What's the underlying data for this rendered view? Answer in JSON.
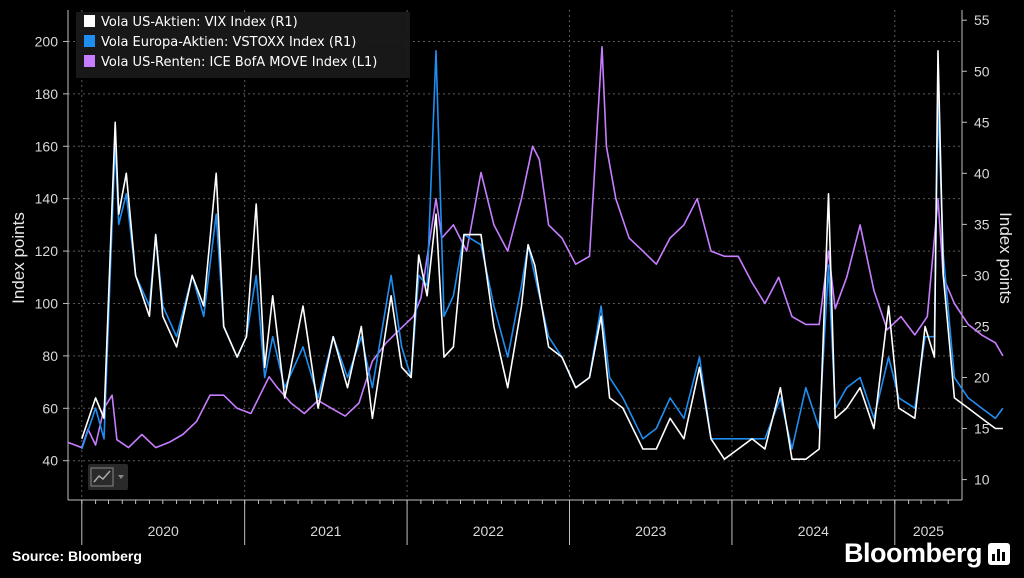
{
  "chart_data": {
    "type": "line",
    "left_axis": {
      "label": "Index points",
      "ticks": [
        40,
        60,
        80,
        100,
        120,
        140,
        160,
        180,
        200
      ],
      "range": [
        25,
        212
      ]
    },
    "right_axis": {
      "label": "Index points",
      "ticks": [
        10,
        15,
        20,
        25,
        30,
        35,
        40,
        45,
        50,
        55
      ],
      "range": [
        8,
        56
      ]
    },
    "x_axis": {
      "ticks": [
        "2020",
        "2021",
        "2022",
        "2023",
        "2024",
        "2025"
      ],
      "range": [
        "2019-12-01",
        "2025-06-01"
      ]
    },
    "legend_position": "top-left",
    "grid": true,
    "series": [
      {
        "name": "Vola US-Aktien: VIX Index (R1)",
        "axis": "right",
        "color": "#ffffff",
        "points": [
          [
            "2020-01-01",
            14
          ],
          [
            "2020-02-01",
            18
          ],
          [
            "2020-02-20",
            16
          ],
          [
            "2020-03-16",
            45
          ],
          [
            "2020-03-24",
            36
          ],
          [
            "2020-04-10",
            40
          ],
          [
            "2020-05-01",
            30
          ],
          [
            "2020-06-01",
            26
          ],
          [
            "2020-06-15",
            34
          ],
          [
            "2020-07-01",
            26
          ],
          [
            "2020-08-01",
            23
          ],
          [
            "2020-09-05",
            30
          ],
          [
            "2020-10-01",
            27
          ],
          [
            "2020-10-29",
            40
          ],
          [
            "2020-11-15",
            25
          ],
          [
            "2020-12-15",
            22
          ],
          [
            "2021-01-05",
            24
          ],
          [
            "2021-01-27",
            37
          ],
          [
            "2021-02-15",
            21
          ],
          [
            "2021-03-05",
            28
          ],
          [
            "2021-04-01",
            18
          ],
          [
            "2021-05-12",
            27
          ],
          [
            "2021-06-15",
            17
          ],
          [
            "2021-07-19",
            24
          ],
          [
            "2021-08-20",
            19
          ],
          [
            "2021-09-20",
            25
          ],
          [
            "2021-10-15",
            16
          ],
          [
            "2021-11-26",
            28
          ],
          [
            "2021-12-20",
            21
          ],
          [
            "2022-01-10",
            20
          ],
          [
            "2022-01-27",
            32
          ],
          [
            "2022-02-15",
            28
          ],
          [
            "2022-03-07",
            36
          ],
          [
            "2022-03-25",
            22
          ],
          [
            "2022-04-15",
            23
          ],
          [
            "2022-05-09",
            34
          ],
          [
            "2022-06-16",
            34
          ],
          [
            "2022-07-15",
            25
          ],
          [
            "2022-08-15",
            19
          ],
          [
            "2022-09-15",
            27
          ],
          [
            "2022-09-30",
            33
          ],
          [
            "2022-10-15",
            31
          ],
          [
            "2022-11-15",
            23
          ],
          [
            "2022-12-15",
            22
          ],
          [
            "2023-01-15",
            19
          ],
          [
            "2023-02-15",
            20
          ],
          [
            "2023-03-13",
            26
          ],
          [
            "2023-04-01",
            18
          ],
          [
            "2023-05-01",
            17
          ],
          [
            "2023-06-15",
            13
          ],
          [
            "2023-07-15",
            13
          ],
          [
            "2023-08-15",
            16
          ],
          [
            "2023-09-15",
            14
          ],
          [
            "2023-10-20",
            21
          ],
          [
            "2023-11-15",
            14
          ],
          [
            "2023-12-15",
            12
          ],
          [
            "2024-01-15",
            13
          ],
          [
            "2024-02-15",
            14
          ],
          [
            "2024-03-15",
            13
          ],
          [
            "2024-04-19",
            19
          ],
          [
            "2024-05-15",
            12
          ],
          [
            "2024-06-15",
            12
          ],
          [
            "2024-07-15",
            13
          ],
          [
            "2024-08-05",
            38
          ],
          [
            "2024-08-20",
            16
          ],
          [
            "2024-09-15",
            17
          ],
          [
            "2024-10-15",
            19
          ],
          [
            "2024-11-15",
            15
          ],
          [
            "2024-12-18",
            27
          ],
          [
            "2025-01-10",
            17
          ],
          [
            "2025-02-15",
            16
          ],
          [
            "2025-03-10",
            25
          ],
          [
            "2025-03-31",
            22
          ],
          [
            "2025-04-08",
            52
          ],
          [
            "2025-04-20",
            30
          ],
          [
            "2025-05-15",
            18
          ],
          [
            "2025-06-15",
            17
          ],
          [
            "2025-07-15",
            16
          ],
          [
            "2025-08-15",
            15
          ],
          [
            "2025-09-01",
            15
          ]
        ]
      },
      {
        "name": "Vola Europa-Aktien: VSTOXX Index (R1)",
        "axis": "right",
        "color": "#1f8ef1",
        "points": [
          [
            "2020-01-01",
            13
          ],
          [
            "2020-02-01",
            17
          ],
          [
            "2020-02-20",
            14
          ],
          [
            "2020-03-16",
            43
          ],
          [
            "2020-03-24",
            35
          ],
          [
            "2020-04-10",
            38
          ],
          [
            "2020-05-01",
            30
          ],
          [
            "2020-06-01",
            27
          ],
          [
            "2020-06-15",
            34
          ],
          [
            "2020-07-01",
            27
          ],
          [
            "2020-08-01",
            24
          ],
          [
            "2020-09-05",
            30
          ],
          [
            "2020-10-01",
            26
          ],
          [
            "2020-10-29",
            36
          ],
          [
            "2020-11-15",
            25
          ],
          [
            "2020-12-15",
            22
          ],
          [
            "2021-01-05",
            24
          ],
          [
            "2021-01-27",
            30
          ],
          [
            "2021-02-15",
            20
          ],
          [
            "2021-03-05",
            24
          ],
          [
            "2021-04-01",
            19
          ],
          [
            "2021-05-12",
            23
          ],
          [
            "2021-06-15",
            18
          ],
          [
            "2021-07-19",
            24
          ],
          [
            "2021-08-20",
            20
          ],
          [
            "2021-09-20",
            24
          ],
          [
            "2021-10-15",
            19
          ],
          [
            "2021-11-26",
            30
          ],
          [
            "2021-12-20",
            23
          ],
          [
            "2022-01-10",
            20
          ],
          [
            "2022-01-27",
            30
          ],
          [
            "2022-02-15",
            29
          ],
          [
            "2022-03-07",
            52
          ],
          [
            "2022-03-25",
            26
          ],
          [
            "2022-04-15",
            28
          ],
          [
            "2022-05-09",
            34
          ],
          [
            "2022-06-16",
            33
          ],
          [
            "2022-07-15",
            27
          ],
          [
            "2022-08-15",
            22
          ],
          [
            "2022-09-15",
            29
          ],
          [
            "2022-09-30",
            33
          ],
          [
            "2022-10-15",
            30
          ],
          [
            "2022-11-15",
            24
          ],
          [
            "2022-12-15",
            22
          ],
          [
            "2023-01-15",
            19
          ],
          [
            "2023-02-15",
            20
          ],
          [
            "2023-03-13",
            27
          ],
          [
            "2023-04-01",
            20
          ],
          [
            "2023-05-01",
            18
          ],
          [
            "2023-06-15",
            14
          ],
          [
            "2023-07-15",
            15
          ],
          [
            "2023-08-15",
            18
          ],
          [
            "2023-09-15",
            16
          ],
          [
            "2023-10-20",
            22
          ],
          [
            "2023-11-15",
            14
          ],
          [
            "2023-12-15",
            14
          ],
          [
            "2024-01-15",
            14
          ],
          [
            "2024-02-15",
            14
          ],
          [
            "2024-03-15",
            14
          ],
          [
            "2024-04-19",
            18
          ],
          [
            "2024-05-15",
            13
          ],
          [
            "2024-06-15",
            19
          ],
          [
            "2024-07-15",
            15
          ],
          [
            "2024-08-05",
            31
          ],
          [
            "2024-08-20",
            17
          ],
          [
            "2024-09-15",
            19
          ],
          [
            "2024-10-15",
            20
          ],
          [
            "2024-11-15",
            16
          ],
          [
            "2024-12-18",
            22
          ],
          [
            "2025-01-10",
            18
          ],
          [
            "2025-02-15",
            17
          ],
          [
            "2025-03-10",
            24
          ],
          [
            "2025-03-31",
            24
          ],
          [
            "2025-04-08",
            47
          ],
          [
            "2025-04-20",
            32
          ],
          [
            "2025-05-15",
            20
          ],
          [
            "2025-06-15",
            18
          ],
          [
            "2025-07-15",
            17
          ],
          [
            "2025-08-15",
            16
          ],
          [
            "2025-09-01",
            17
          ]
        ]
      },
      {
        "name": "Vola US-Renten: ICE BofA MOVE Index (L1)",
        "axis": "left",
        "color": "#c77dff",
        "points": [
          [
            "2019-12-01",
            47
          ],
          [
            "2020-01-01",
            45
          ],
          [
            "2020-01-15",
            52
          ],
          [
            "2020-02-01",
            46
          ],
          [
            "2020-02-20",
            60
          ],
          [
            "2020-03-09",
            65
          ],
          [
            "2020-03-20",
            48
          ],
          [
            "2020-04-15",
            45
          ],
          [
            "2020-05-15",
            50
          ],
          [
            "2020-06-15",
            45
          ],
          [
            "2020-07-15",
            47
          ],
          [
            "2020-08-15",
            50
          ],
          [
            "2020-09-15",
            55
          ],
          [
            "2020-10-15",
            65
          ],
          [
            "2020-11-15",
            65
          ],
          [
            "2020-12-15",
            60
          ],
          [
            "2021-01-15",
            58
          ],
          [
            "2021-02-25",
            72
          ],
          [
            "2021-03-15",
            68
          ],
          [
            "2021-04-15",
            62
          ],
          [
            "2021-05-15",
            58
          ],
          [
            "2021-06-15",
            63
          ],
          [
            "2021-07-15",
            60
          ],
          [
            "2021-08-15",
            57
          ],
          [
            "2021-09-15",
            62
          ],
          [
            "2021-10-15",
            78
          ],
          [
            "2021-11-15",
            85
          ],
          [
            "2021-12-15",
            90
          ],
          [
            "2022-01-15",
            95
          ],
          [
            "2022-02-01",
            102
          ],
          [
            "2022-03-07",
            140
          ],
          [
            "2022-03-20",
            125
          ],
          [
            "2022-04-15",
            130
          ],
          [
            "2022-05-15",
            120
          ],
          [
            "2022-06-16",
            150
          ],
          [
            "2022-07-15",
            130
          ],
          [
            "2022-08-15",
            120
          ],
          [
            "2022-09-15",
            140
          ],
          [
            "2022-10-10",
            160
          ],
          [
            "2022-10-25",
            155
          ],
          [
            "2022-11-15",
            130
          ],
          [
            "2022-12-15",
            125
          ],
          [
            "2023-01-15",
            115
          ],
          [
            "2023-02-15",
            118
          ],
          [
            "2023-03-15",
            198
          ],
          [
            "2023-03-25",
            160
          ],
          [
            "2023-04-15",
            140
          ],
          [
            "2023-05-15",
            125
          ],
          [
            "2023-06-15",
            120
          ],
          [
            "2023-07-15",
            115
          ],
          [
            "2023-08-15",
            125
          ],
          [
            "2023-09-15",
            130
          ],
          [
            "2023-10-15",
            140
          ],
          [
            "2023-11-15",
            120
          ],
          [
            "2023-12-15",
            118
          ],
          [
            "2024-01-15",
            118
          ],
          [
            "2024-02-15",
            108
          ],
          [
            "2024-03-15",
            100
          ],
          [
            "2024-04-15",
            110
          ],
          [
            "2024-05-15",
            95
          ],
          [
            "2024-06-15",
            92
          ],
          [
            "2024-07-15",
            92
          ],
          [
            "2024-08-05",
            120
          ],
          [
            "2024-08-20",
            98
          ],
          [
            "2024-09-15",
            110
          ],
          [
            "2024-10-15",
            130
          ],
          [
            "2024-11-15",
            105
          ],
          [
            "2024-12-15",
            90
          ],
          [
            "2025-01-15",
            95
          ],
          [
            "2025-02-15",
            88
          ],
          [
            "2025-03-15",
            95
          ],
          [
            "2025-04-08",
            140
          ],
          [
            "2025-04-20",
            110
          ],
          [
            "2025-05-15",
            100
          ],
          [
            "2025-06-15",
            92
          ],
          [
            "2025-07-15",
            88
          ],
          [
            "2025-08-15",
            85
          ],
          [
            "2025-09-01",
            80
          ]
        ]
      }
    ]
  },
  "footer": {
    "source": "Source: Bloomberg",
    "brand": "Bloomberg"
  }
}
